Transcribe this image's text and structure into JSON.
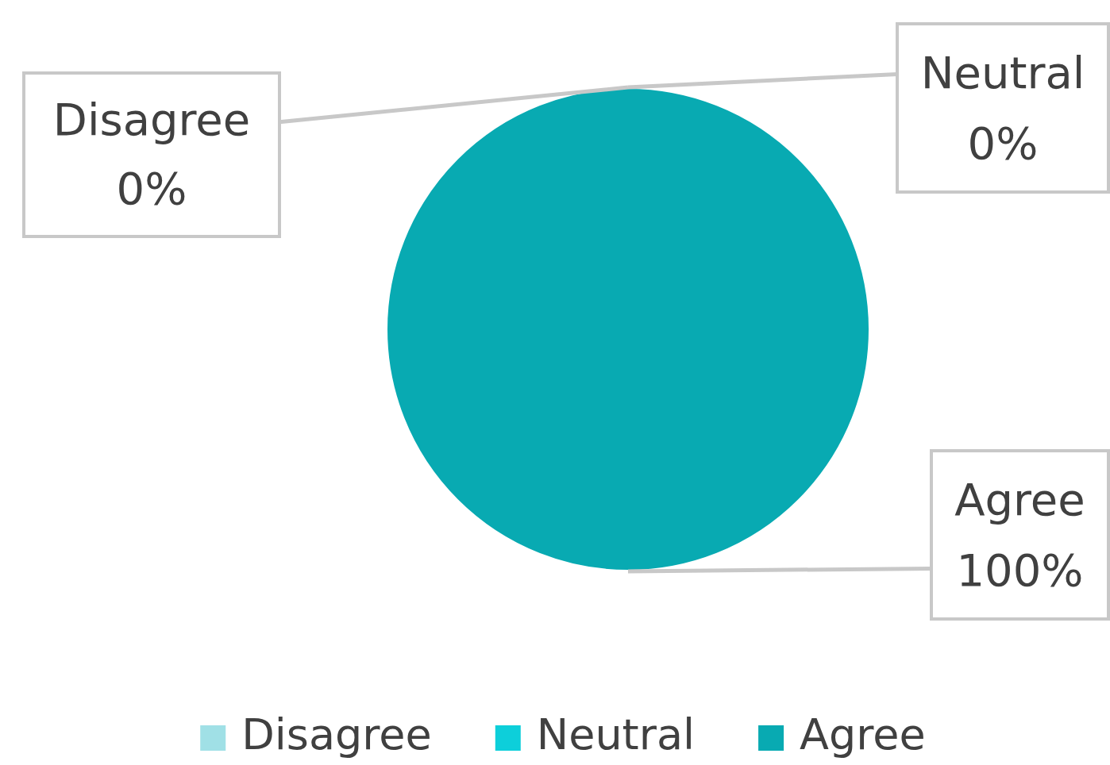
{
  "chart_data": {
    "type": "pie",
    "categories": [
      "Disagree",
      "Neutral",
      "Agree"
    ],
    "values": [
      0,
      0,
      100
    ],
    "colors": [
      "#a0e0e6",
      "#0dcfda",
      "#08aab2"
    ],
    "value_labels": [
      "0%",
      "0%",
      "100%"
    ],
    "legend": "bottom"
  }
}
